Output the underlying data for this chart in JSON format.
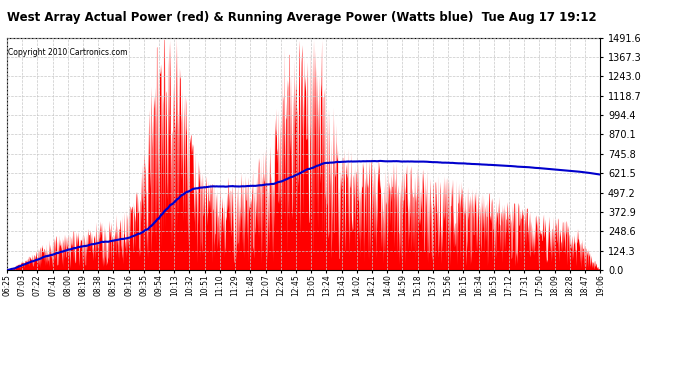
{
  "title": "West Array Actual Power (red) & Running Average Power (Watts blue)  Tue Aug 17 19:12",
  "copyright": "Copyright 2010 Cartronics.com",
  "ymax": 1491.7,
  "ymin": 0.0,
  "ytick_step": 124.3,
  "background_color": "#ffffff",
  "grid_color": "#c8c8c8",
  "actual_color": "#ff0000",
  "average_color": "#0000cc",
  "x_labels": [
    "06:25",
    "07:03",
    "07:22",
    "07:41",
    "08:00",
    "08:19",
    "08:38",
    "08:57",
    "09:16",
    "09:35",
    "09:54",
    "10:13",
    "10:32",
    "10:51",
    "11:10",
    "11:29",
    "11:48",
    "12:07",
    "12:26",
    "12:45",
    "13:05",
    "13:24",
    "13:43",
    "14:02",
    "14:21",
    "14:40",
    "14:59",
    "15:18",
    "15:37",
    "15:56",
    "16:15",
    "16:34",
    "16:53",
    "17:12",
    "17:31",
    "17:50",
    "18:09",
    "18:28",
    "18:47",
    "19:06"
  ],
  "figsize": [
    6.9,
    3.75
  ],
  "dpi": 100
}
